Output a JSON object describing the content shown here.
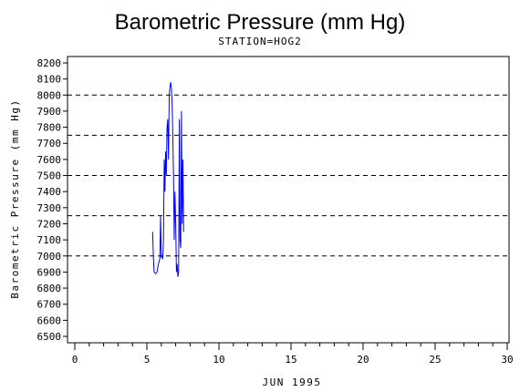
{
  "chart_data": {
    "type": "line",
    "title": "Barometric Pressure (mm Hg)",
    "subtitle": "STATION=HOG2",
    "xlabel": "JUN 1995",
    "ylabel": "Barometric Pressure (mm Hg)",
    "xlim": [
      0,
      30
    ],
    "ylim": [
      6500,
      8200
    ],
    "x_ticks": [
      0,
      5,
      10,
      15,
      20,
      25,
      30
    ],
    "y_ticks": [
      6500,
      6600,
      6700,
      6800,
      6900,
      7000,
      7100,
      7200,
      7300,
      7400,
      7500,
      7600,
      7700,
      7800,
      7900,
      8000,
      8100,
      8200
    ],
    "reference_lines": [
      7000,
      7250,
      7500,
      7750,
      8000
    ],
    "series_color": "#0000ff",
    "series": [
      {
        "x": [
          5.4,
          5.45,
          5.5,
          5.6,
          5.7,
          5.8,
          5.9,
          5.95,
          6.0,
          6.05,
          6.1,
          6.15,
          6.2,
          6.25,
          6.3,
          6.35,
          6.4,
          6.45,
          6.5,
          6.55,
          6.6,
          6.65,
          6.7,
          6.75,
          6.8,
          6.85,
          6.9,
          6.95,
          7.0,
          7.05,
          7.1,
          7.15,
          7.2,
          7.25,
          7.3,
          7.35,
          7.4,
          7.45,
          7.5,
          7.55
        ],
        "y": [
          7150,
          7000,
          6900,
          6890,
          6900,
          6950,
          6980,
          7250,
          6990,
          7000,
          6980,
          7100,
          7600,
          7400,
          7650,
          7500,
          7800,
          7850,
          7600,
          8000,
          8050,
          8080,
          8040,
          7950,
          7750,
          7500,
          7100,
          7400,
          7200,
          6900,
          6950,
          6870,
          6900,
          7850,
          7100,
          7050,
          7900,
          7200,
          7600,
          7150
        ]
      }
    ]
  }
}
